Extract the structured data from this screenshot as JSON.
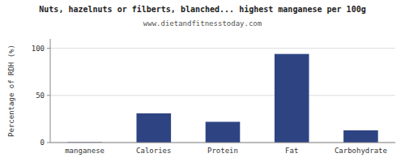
{
  "chart_data": {
    "type": "bar",
    "title": "Nuts, hazelnuts or filberts, blanched... highest manganese per 100g",
    "subtitle": "www.dietandfitnesstoday.com",
    "ylabel": "Percentage of RDH (%)",
    "categories": [
      "manganese",
      "Calories",
      "Protein",
      "Fat",
      "Carbohydrate"
    ],
    "values": [
      0.4,
      31,
      22,
      94,
      13
    ],
    "color": "#2e4482",
    "ylim": [
      0,
      110
    ],
    "yticks": [
      0,
      50,
      100
    ],
    "grid": true
  }
}
